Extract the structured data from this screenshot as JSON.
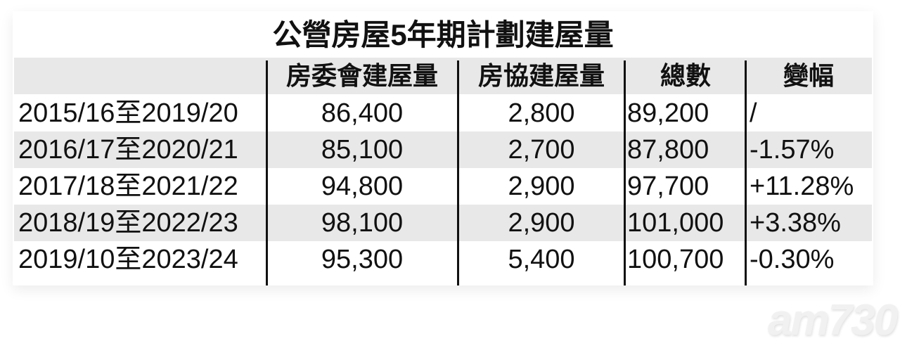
{
  "chart_data": {
    "type": "table",
    "title": "公營房屋5年期計劃建屋量",
    "columns": [
      "",
      "房委會建屋量",
      "房協建屋量",
      "總數",
      "變幅"
    ],
    "rows": [
      [
        "2015/16至2019/20",
        "86,400",
        "2,800",
        "89,200",
        "/"
      ],
      [
        "2016/17至2020/21",
        "85,100",
        "2,700",
        "87,800",
        "-1.57%"
      ],
      [
        "2017/18至2021/22",
        "94,800",
        "2,900",
        "97,700",
        "+11.28%"
      ],
      [
        "2018/19至2022/23",
        "98,100",
        "2,900",
        "101,000",
        "+3.38%"
      ],
      [
        "2019/10至2023/24",
        "95,300",
        "5,400",
        "100,700",
        "-0.30%"
      ]
    ],
    "row_stripe_color": "#e8e8e8"
  },
  "watermark": "am730"
}
